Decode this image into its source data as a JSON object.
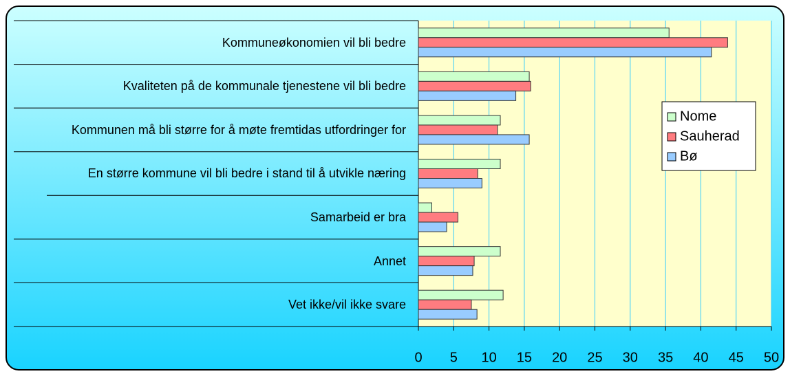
{
  "chart_data": {
    "type": "barh",
    "categories": [
      "Kommuneøkonomien vil bli bedre",
      "Kvaliteten på de kommunale tjenestene vil bli bedre",
      "Kommunen må bli større for å møte fremtidas utfordringer for",
      "En større kommune vil bli bedre i stand til å utvikle næring",
      "Samarbeid er bra",
      "Annet",
      "Vet ikke/vil ikke svare"
    ],
    "series": [
      {
        "name": "Nome",
        "color": "#ccffcc",
        "values": [
          35.5,
          15.7,
          11.6,
          11.6,
          1.9,
          11.6,
          12.0
        ]
      },
      {
        "name": "Sauherad",
        "color": "#ff7c80",
        "values": [
          43.8,
          15.9,
          11.2,
          8.4,
          5.6,
          7.9,
          7.5
        ]
      },
      {
        "name": "Bø",
        "color": "#99ccff",
        "values": [
          41.5,
          13.8,
          15.7,
          9.0,
          4.0,
          7.7,
          8.3
        ]
      }
    ],
    "xlim": [
      0,
      50
    ],
    "xticks": [
      0,
      5,
      10,
      15,
      20,
      25,
      30,
      35,
      40,
      45,
      50
    ],
    "grid": true,
    "legend": "right"
  }
}
